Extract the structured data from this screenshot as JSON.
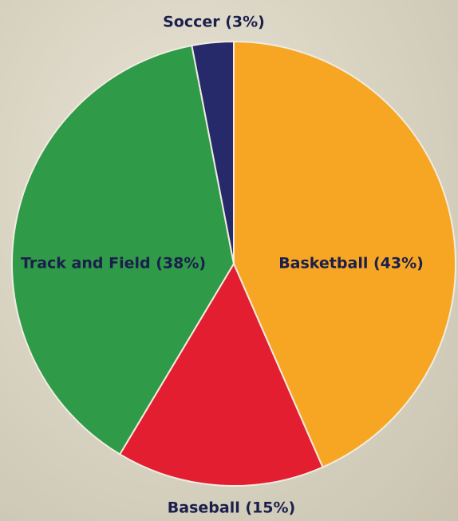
{
  "chart_data": {
    "type": "pie",
    "categories": [
      "Basketball (43%)",
      "Baseball (15%)",
      "Track and Field (38%)",
      "Soccer (3%)"
    ],
    "values": [
      43,
      15,
      38,
      3
    ],
    "colors": [
      "#f7a623",
      "#e21e30",
      "#2f9a47",
      "#272a6a"
    ]
  }
}
